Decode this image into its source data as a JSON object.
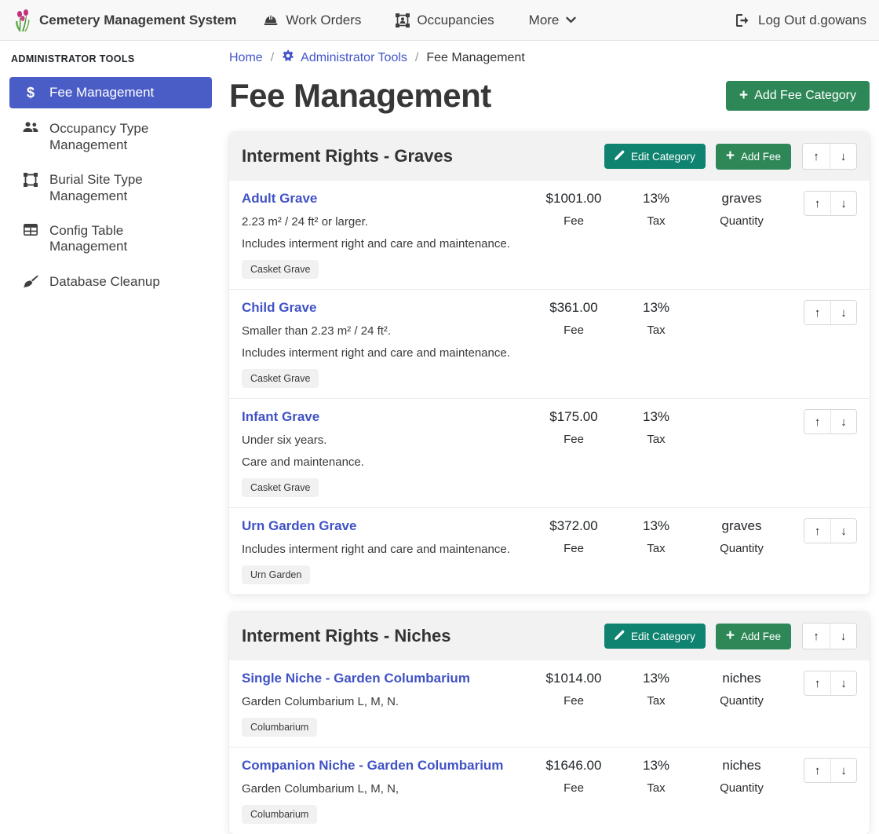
{
  "navbar": {
    "brand": "Cemetery Management System",
    "items": [
      {
        "label": "Work Orders",
        "icon": "hard-hat-icon"
      },
      {
        "label": "Occupancies",
        "icon": "occupancy-frame-icon"
      },
      {
        "label": "More",
        "icon": "chevron-down-icon"
      }
    ],
    "logout_label": "Log Out d.gowans"
  },
  "sidebar": {
    "heading": "ADMINISTRATOR TOOLS",
    "items": [
      {
        "label": "Fee Management",
        "icon": "dollar-icon",
        "active": true
      },
      {
        "label": "Occupancy Type Management",
        "icon": "people-icon",
        "active": false
      },
      {
        "label": "Burial Site Type Management",
        "icon": "frame-icon",
        "active": false
      },
      {
        "label": "Config Table Management",
        "icon": "table-icon",
        "active": false
      },
      {
        "label": "Database Cleanup",
        "icon": "broom-icon",
        "active": false
      }
    ]
  },
  "breadcrumb": {
    "home": "Home",
    "admin_tools": "Administrator Tools",
    "current": "Fee Management",
    "separator": "/"
  },
  "page": {
    "title": "Fee Management",
    "add_category_label": "Add Fee Category"
  },
  "labels": {
    "edit_category": "Edit Category",
    "add_fee": "Add Fee",
    "fee": "Fee",
    "tax": "Tax",
    "quantity": "Quantity",
    "up_arrow": "↑",
    "down_arrow": "↓",
    "plus": "+"
  },
  "colors": {
    "sidebar_active_blue": "#4a5cc5",
    "link_blue": "#4052c5",
    "button_green": "#2e8757",
    "button_teal": "#0f8370",
    "card_header_gray": "#f2f2f2"
  },
  "categories": [
    {
      "title": "Interment Rights - Graves",
      "fees": [
        {
          "name": "Adult Grave",
          "desc1": "2.23 m² / 24 ft² or larger.",
          "desc2": "Includes interment right and care and maintenance.",
          "badge": "Casket Grave",
          "fee": "$1001.00",
          "tax": "13%",
          "quantity": "graves"
        },
        {
          "name": "Child Grave",
          "desc1": "Smaller than 2.23 m² / 24 ft².",
          "desc2": "Includes interment right and care and maintenance.",
          "badge": "Casket Grave",
          "fee": "$361.00",
          "tax": "13%",
          "quantity": ""
        },
        {
          "name": "Infant Grave",
          "desc1": "Under six years.",
          "desc2": "Care and maintenance.",
          "badge": "Casket Grave",
          "fee": "$175.00",
          "tax": "13%",
          "quantity": ""
        },
        {
          "name": "Urn Garden Grave",
          "desc1": "Includes interment right and care and maintenance.",
          "desc2": "",
          "badge": "Urn Garden",
          "fee": "$372.00",
          "tax": "13%",
          "quantity": "graves"
        }
      ]
    },
    {
      "title": "Interment Rights - Niches",
      "fees": [
        {
          "name": "Single Niche - Garden Columbarium",
          "desc1": "Garden Columbarium L, M, N.",
          "desc2": "",
          "badge": "Columbarium",
          "fee": "$1014.00",
          "tax": "13%",
          "quantity": "niches"
        },
        {
          "name": "Companion Niche - Garden Columbarium",
          "desc1": "Garden Columbarium L, M, N,",
          "desc2": "",
          "badge": "Columbarium",
          "fee": "$1646.00",
          "tax": "13%",
          "quantity": "niches"
        }
      ]
    }
  ]
}
